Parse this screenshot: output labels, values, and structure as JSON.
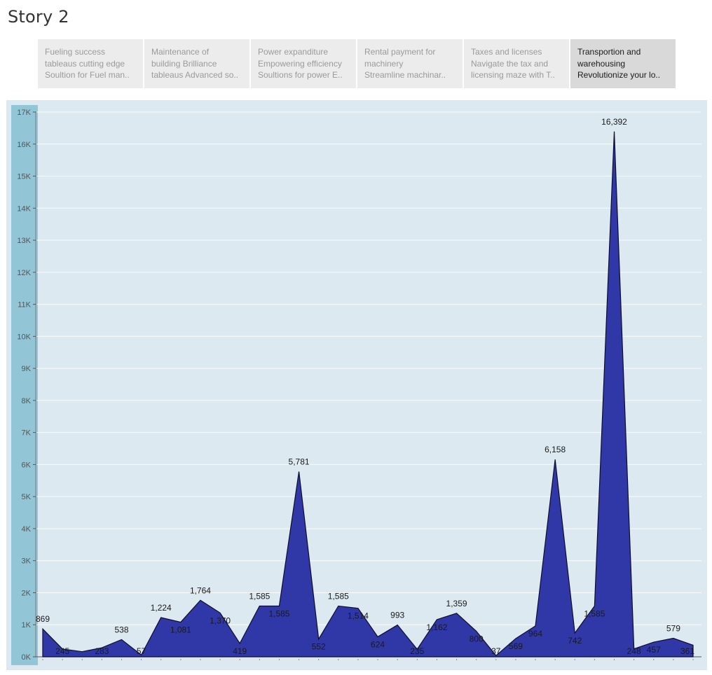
{
  "story": {
    "title": "Story 2"
  },
  "tabs": [
    {
      "lines": [
        "Fueling success",
        "tableaus cutting edge",
        "Soultion for Fuel man.."
      ],
      "active": false
    },
    {
      "lines": [
        "Maintenance of",
        "building  Brilliance",
        "tableaus Advanced so.."
      ],
      "active": false
    },
    {
      "lines": [
        "Power expanditure",
        "Empowering efficiency",
        "Soultions for power E.."
      ],
      "active": false
    },
    {
      "lines": [
        "Rental payment for",
        "machinery",
        "Streamline machinar.."
      ],
      "active": false
    },
    {
      "lines": [
        "Taxes and licenses",
        "Navigate the tax and",
        "licensing maze with T.."
      ],
      "active": false
    },
    {
      "lines": [
        "Transportion and",
        "warehousing",
        "Revolutionize your lo.."
      ],
      "active": true
    }
  ],
  "colors": {
    "area_fill": "#3038a8",
    "area_stroke": "#0d0d2a",
    "plot_bg": "#dde9f0",
    "axis_band": "#92c5d5"
  },
  "chart_data": {
    "type": "area",
    "ylim": [
      0,
      17000
    ],
    "y_ticks": [
      0,
      1000,
      2000,
      3000,
      4000,
      5000,
      6000,
      7000,
      8000,
      9000,
      10000,
      11000,
      12000,
      13000,
      14000,
      15000,
      16000,
      17000
    ],
    "y_tick_labels": [
      "0K",
      "1K",
      "2K",
      "3K",
      "4K",
      "5K",
      "6K",
      "7K",
      "8K",
      "9K",
      "10K",
      "11K",
      "12K",
      "13K",
      "14K",
      "15K",
      "16K",
      "17K"
    ],
    "values": [
      869,
      245,
      160,
      283,
      538,
      57,
      1224,
      1081,
      1764,
      1370,
      419,
      1585,
      1585,
      5781,
      552,
      1585,
      1514,
      624,
      993,
      235,
      1162,
      1359,
      800,
      37,
      569,
      964,
      6158,
      742,
      1585,
      16392,
      248,
      457,
      579,
      361
    ],
    "labels": [
      "869",
      "245",
      "",
      "283",
      "538",
      "57",
      "1,224",
      "1,081",
      "1,764",
      "1,370",
      "419",
      "1,585",
      "1,585",
      "5,781",
      "552",
      "1,585",
      "1,514",
      "624",
      "993",
      "235",
      "1,162",
      "1,359",
      "800",
      "37",
      "569",
      "964",
      "6,158",
      "742",
      "1,585",
      "16,392",
      "248",
      "457",
      "579",
      "361"
    ],
    "grid": true
  }
}
